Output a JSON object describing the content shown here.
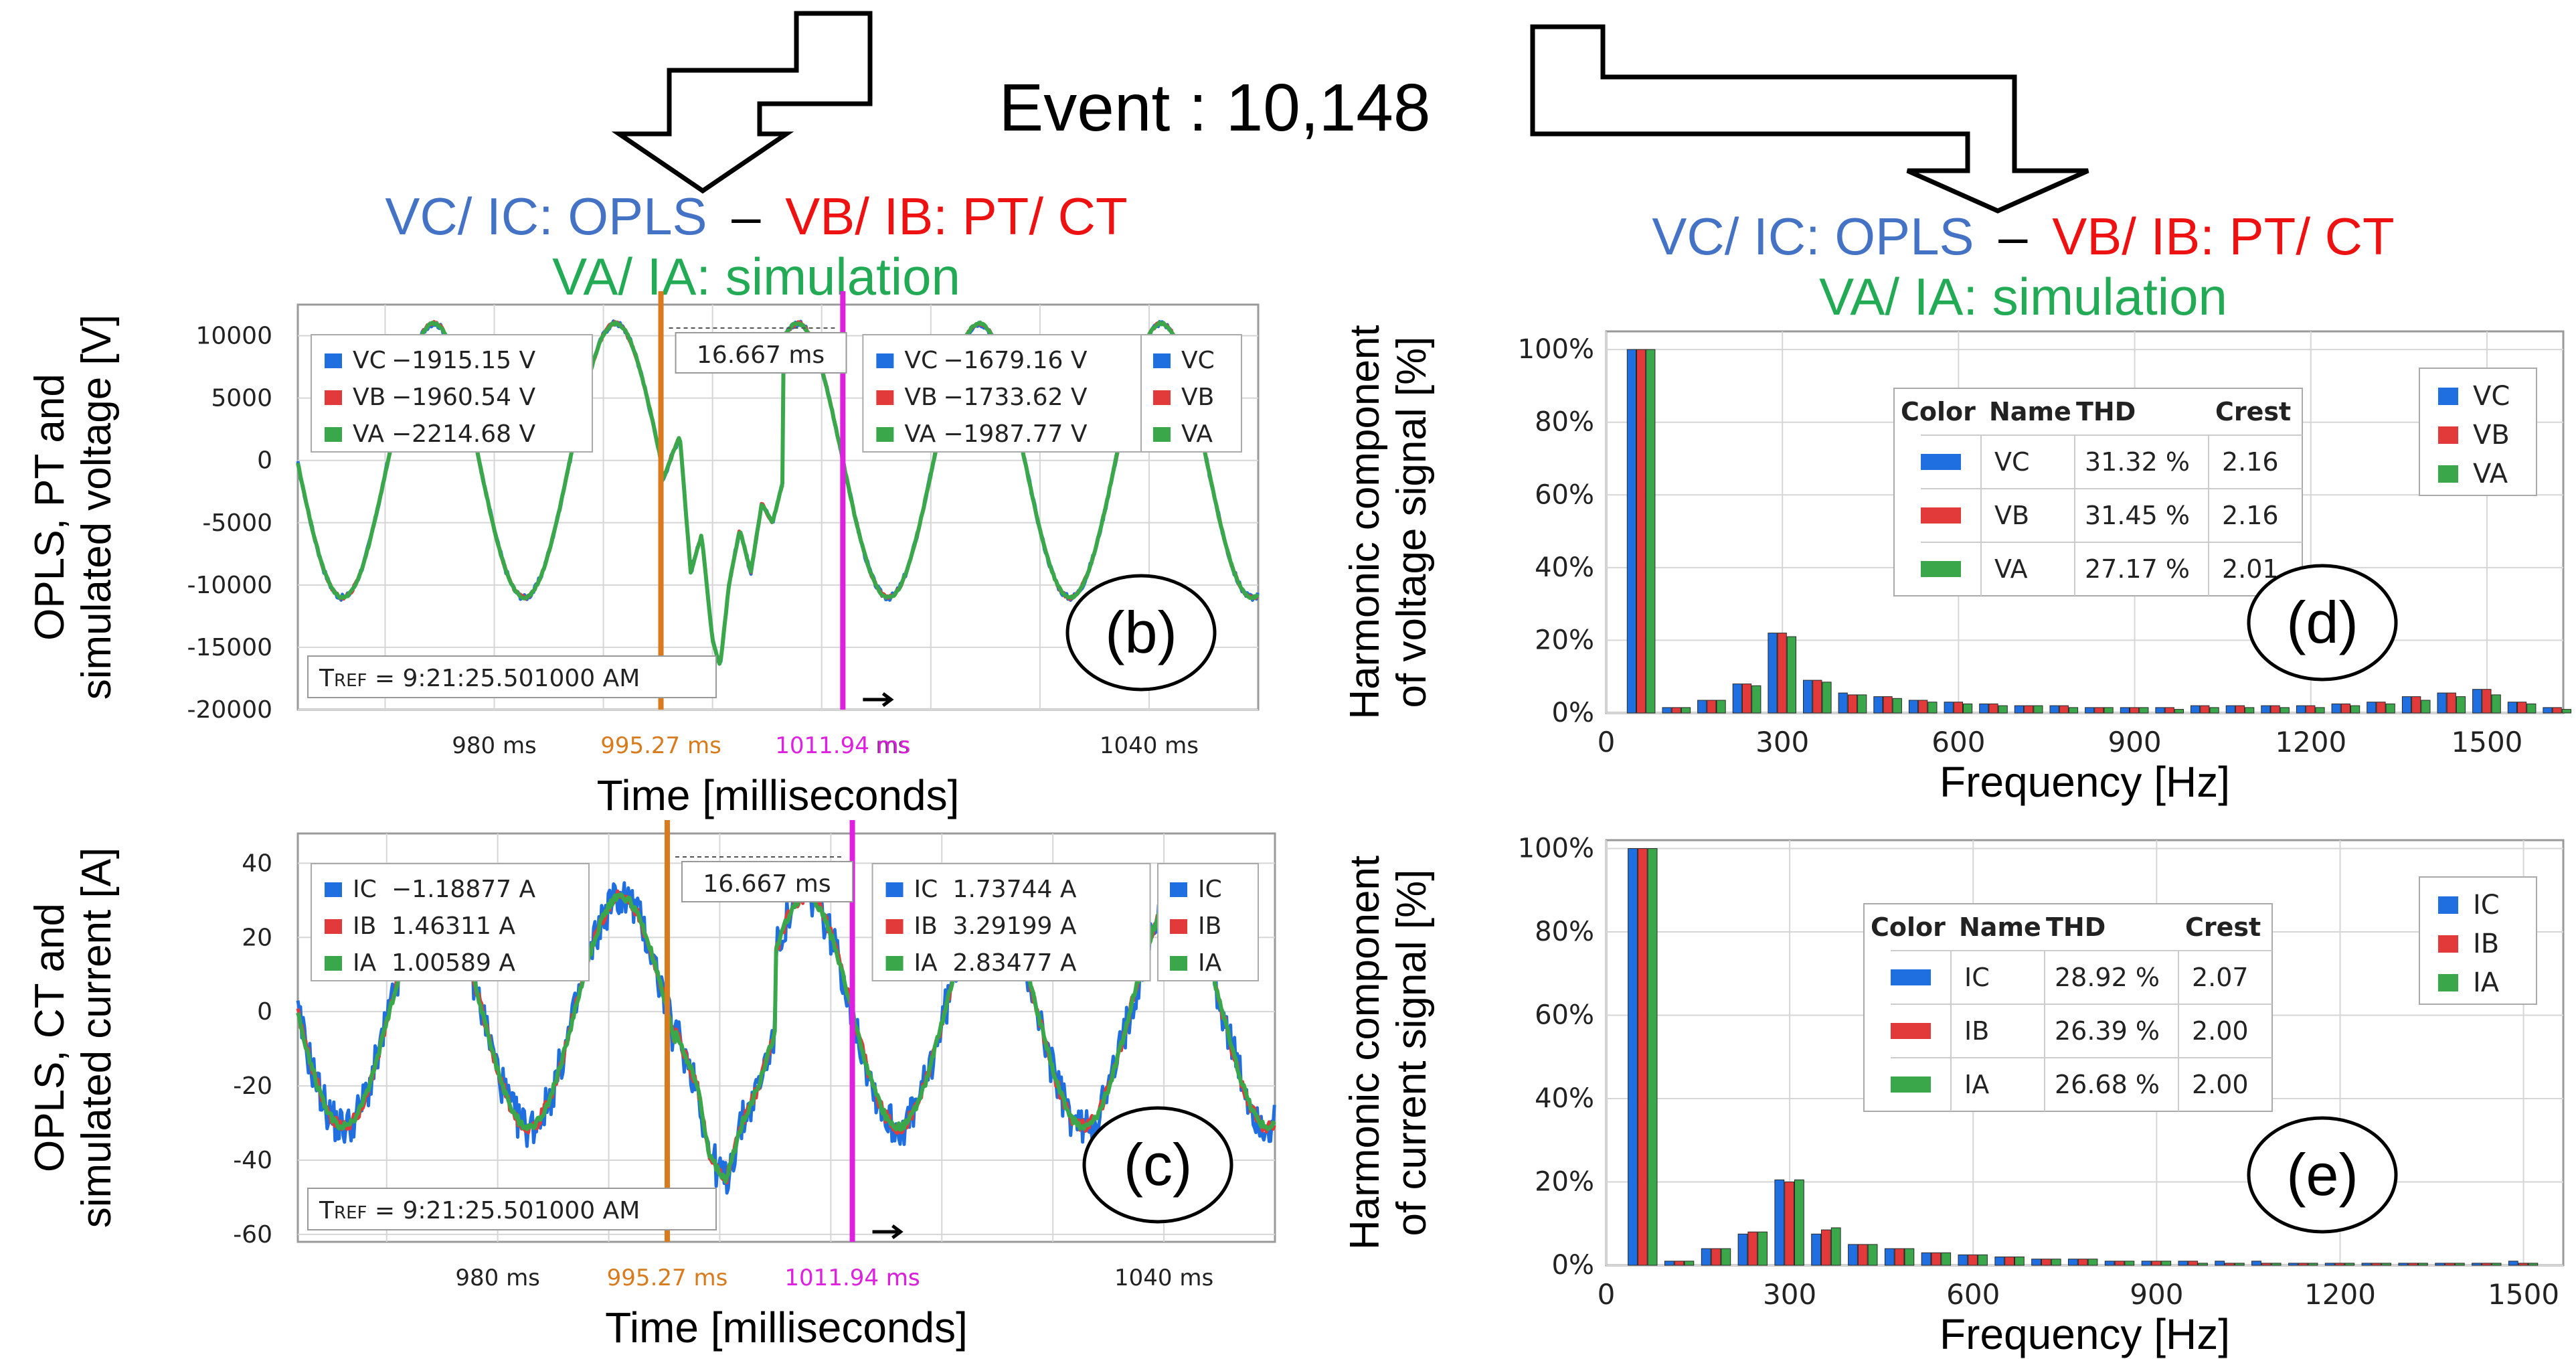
{
  "header": {
    "event": "Event : 10,148",
    "left_title_1": "VC/ IC: OPLS",
    "left_title_dash": "–",
    "left_title_2": "VB/ IB: PT/ CT",
    "left_title_3": "VA/ IA: simulation",
    "right_title_1": "VC/ IC: OPLS",
    "right_title_dash": "–",
    "right_title_2": "VB/ IB: PT/ CT",
    "right_title_3": "VA/ IA: simulation"
  },
  "colors": {
    "blue": "#1f6fe0",
    "red": "#e23a3a",
    "green": "#3aa84a",
    "orange": "#d97a1c",
    "magenta": "#e020e0",
    "title_blue": "#4472c4",
    "title_red": "#ee1111",
    "title_green": "#22aa55"
  },
  "chart_data": [
    {
      "id": "b",
      "type": "line",
      "panel_label": "(b)",
      "ylabel_1": "OPLS, PT and",
      "ylabel_2": "simulated voltage [V]",
      "xlabel": "Time [milliseconds]",
      "ylim": [
        -20000,
        12500
      ],
      "yticks": [
        "10000",
        "5000",
        "0",
        "-5000",
        "-10000",
        "-15000",
        "-20000"
      ],
      "ytick_values": [
        10000,
        5000,
        0,
        -5000,
        -10000,
        -15000,
        -20000
      ],
      "xlim": [
        962,
        1050
      ],
      "xticks": [
        {
          "t": 980,
          "label": "980 ms"
        },
        {
          "t": 1040,
          "label": "1040 ms"
        }
      ],
      "cursor1": {
        "t": 995.27,
        "label": "995.27 ms"
      },
      "cursor2": {
        "t": 1011.94,
        "label": "1011.94 ms"
      },
      "partial_tick": "ms",
      "delta_label": "16.667 ms",
      "tref": "9:21:25.501000 AM",
      "tref_prefix": "T",
      "tref_sub": "REF",
      "legend": [
        "VC",
        "VB",
        "VA"
      ],
      "cursor1_values": [
        {
          "name": "VC",
          "value": "−1915.15 V"
        },
        {
          "name": "VB",
          "value": "−1960.54 V"
        },
        {
          "name": "VA",
          "value": "−2214.68 V"
        }
      ],
      "cursor2_values": [
        {
          "name": "VC",
          "value": "−1679.16 V"
        },
        {
          "name": "VB",
          "value": "−1733.62 V"
        },
        {
          "name": "VA",
          "value": "−1987.77 V"
        }
      ],
      "series_params": {
        "freq_hz": 60,
        "amplitude": 11000,
        "offset": 0,
        "phase_zero_ms": 995.27,
        "transient": [
          [
            995.27,
            -1915
          ],
          [
            997,
            2000
          ],
          [
            998,
            -9000
          ],
          [
            999,
            -6000
          ],
          [
            1000,
            -14500
          ],
          [
            1000.7,
            -16500
          ],
          [
            1001.5,
            -10000
          ],
          [
            1002.5,
            -5500
          ],
          [
            1003.5,
            -9000
          ],
          [
            1004.5,
            -3500
          ],
          [
            1005.5,
            -5000
          ],
          [
            1006.5,
            -1500
          ]
        ]
      }
    },
    {
      "id": "c",
      "type": "line",
      "panel_label": "(c)",
      "ylabel_1": "OPLS, CT and",
      "ylabel_2": "simulated current [A]",
      "xlabel": "Time [milliseconds]",
      "ylim": [
        -62,
        48
      ],
      "yticks": [
        "40",
        "20",
        "0",
        "-20",
        "-40",
        "-60"
      ],
      "ytick_values": [
        40,
        20,
        0,
        -20,
        -40,
        -60
      ],
      "xlim": [
        962,
        1050
      ],
      "xticks": [
        {
          "t": 980,
          "label": "980 ms"
        },
        {
          "t": 1040,
          "label": "1040 ms"
        }
      ],
      "cursor1": {
        "t": 995.27,
        "label": "995.27 ms"
      },
      "cursor2": {
        "t": 1011.94,
        "label": "1011.94 ms"
      },
      "partial_tick": "ms",
      "delta_label": "16.667 ms",
      "tref": "9:21:25.501000 AM",
      "tref_prefix": "T",
      "tref_sub": "REF",
      "legend": [
        "IC",
        "IB",
        "IA"
      ],
      "cursor1_values": [
        {
          "name": "IC",
          "value": "−1.18877 A"
        },
        {
          "name": "IB",
          "value": "1.46311 A"
        },
        {
          "name": "IA",
          "value": "1.00589 A"
        }
      ],
      "cursor2_values": [
        {
          "name": "IC",
          "value": "1.73744 A"
        },
        {
          "name": "IB",
          "value": "3.29199 A"
        },
        {
          "name": "IA",
          "value": "2.83477 A"
        }
      ],
      "series_params": {
        "freq_hz": 60,
        "amplitude": 31,
        "offset": 0,
        "phase_zero_ms": 995.27,
        "transient": [
          [
            996,
            -5
          ],
          [
            998,
            -20
          ],
          [
            999,
            -38
          ],
          [
            1000.5,
            -46
          ],
          [
            1002,
            -30
          ],
          [
            1003.5,
            -20
          ],
          [
            1005,
            -5
          ]
        ]
      }
    },
    {
      "id": "d",
      "type": "bar",
      "panel_label": "(d)",
      "ylabel_1": "Harmonic component",
      "ylabel_2": "of voltage signal [%]",
      "xlabel": "Frequency [Hz]",
      "ylim": [
        0,
        105
      ],
      "yticks": [
        "100%",
        "80%",
        "60%",
        "40%",
        "20%",
        "0%"
      ],
      "ytick_values": [
        100,
        80,
        60,
        40,
        20,
        0
      ],
      "xlim": [
        0,
        1630
      ],
      "xticks": [
        "0",
        "300",
        "600",
        "900",
        "1200",
        "1500"
      ],
      "xtick_values": [
        0,
        300,
        600,
        900,
        1200,
        1500
      ],
      "legend": [
        "VC",
        "VB",
        "VA"
      ],
      "table_headers": [
        "Color",
        "Name",
        "THD",
        "Crest"
      ],
      "table_rows": [
        {
          "name": "VC",
          "thd": "31.32 %",
          "crest": "2.16"
        },
        {
          "name": "VB",
          "thd": "31.45 %",
          "crest": "2.16"
        },
        {
          "name": "VA",
          "thd": "27.17 %",
          "crest": "2.01"
        }
      ],
      "harmonics_hz": [
        60,
        120,
        180,
        240,
        300,
        360,
        420,
        480,
        540,
        600,
        660,
        720,
        780,
        840,
        900,
        960,
        1020,
        1080,
        1140,
        1200,
        1260,
        1320,
        1380,
        1440,
        1500,
        1560,
        1620
      ],
      "series": [
        {
          "name": "VC",
          "values": [
            100,
            1.5,
            3.5,
            8,
            22,
            9,
            5.5,
            4.5,
            3.5,
            3,
            2.5,
            2,
            2,
            1.5,
            1.5,
            1.5,
            2,
            2,
            2,
            2,
            2.5,
            3,
            4.5,
            5.5,
            6.5,
            3,
            1.5
          ]
        },
        {
          "name": "VB",
          "values": [
            100,
            1.5,
            3.5,
            8,
            22,
            9,
            5,
            4.5,
            3.5,
            3,
            2.5,
            2,
            2,
            1.5,
            1.5,
            1.5,
            2,
            2,
            2,
            2,
            2.5,
            3,
            4.5,
            5.5,
            6.5,
            3,
            1.5
          ]
        },
        {
          "name": "VA",
          "values": [
            100,
            1.5,
            3.5,
            7.5,
            21,
            8.5,
            5,
            4,
            3,
            2.5,
            2,
            2,
            1.5,
            1.5,
            1.5,
            1,
            1.5,
            1.5,
            1.5,
            1.5,
            2,
            2.5,
            3.5,
            4.5,
            5,
            2.5,
            1
          ]
        }
      ]
    },
    {
      "id": "e",
      "type": "bar",
      "panel_label": "(e)",
      "ylabel_1": "Harmonic component",
      "ylabel_2": "of current signal [%]",
      "xlabel": "Frequency [Hz]",
      "ylim": [
        0,
        102
      ],
      "yticks": [
        "100%",
        "80%",
        "60%",
        "40%",
        "20%",
        "0%"
      ],
      "ytick_values": [
        100,
        80,
        60,
        40,
        20,
        0
      ],
      "xlim": [
        0,
        1565
      ],
      "xticks": [
        "0",
        "300",
        "600",
        "900",
        "1200",
        "1500"
      ],
      "xtick_values": [
        0,
        300,
        600,
        900,
        1200,
        1500
      ],
      "legend": [
        "IC",
        "IB",
        "IA"
      ],
      "table_headers": [
        "Color",
        "Name",
        "THD",
        "Crest"
      ],
      "table_rows": [
        {
          "name": "IC",
          "thd": "28.92 %",
          "crest": "2.07"
        },
        {
          "name": "IB",
          "thd": "26.39 %",
          "crest": "2.00"
        },
        {
          "name": "IA",
          "thd": "26.68 %",
          "crest": "2.00"
        }
      ],
      "harmonics_hz": [
        60,
        120,
        180,
        240,
        300,
        360,
        420,
        480,
        540,
        600,
        660,
        720,
        780,
        840,
        900,
        960,
        1020,
        1080,
        1140,
        1200,
        1260,
        1320,
        1380,
        1440,
        1500
      ],
      "series": [
        {
          "name": "IC",
          "values": [
            100,
            1,
            4,
            7.5,
            20.5,
            7.5,
            5,
            4,
            3,
            2.5,
            2,
            1.5,
            1.5,
            1,
            1,
            1,
            1,
            1,
            0.5,
            0.5,
            0.5,
            0.5,
            0.5,
            0.5,
            1
          ]
        },
        {
          "name": "IB",
          "values": [
            100,
            1,
            4,
            8,
            20,
            8.5,
            5,
            4,
            3,
            2.5,
            2,
            1.5,
            1.5,
            1,
            1,
            1,
            0.5,
            0.5,
            0.5,
            0.5,
            0.5,
            0.5,
            0.5,
            0.5,
            0.5
          ]
        },
        {
          "name": "IA",
          "values": [
            100,
            1,
            4,
            8,
            20.5,
            9,
            5,
            4,
            3,
            2.5,
            2,
            1.5,
            1.5,
            1,
            1,
            0.5,
            0.5,
            0.5,
            0.5,
            0.5,
            0.5,
            0.5,
            0.5,
            0.5,
            0.5
          ]
        }
      ]
    }
  ]
}
